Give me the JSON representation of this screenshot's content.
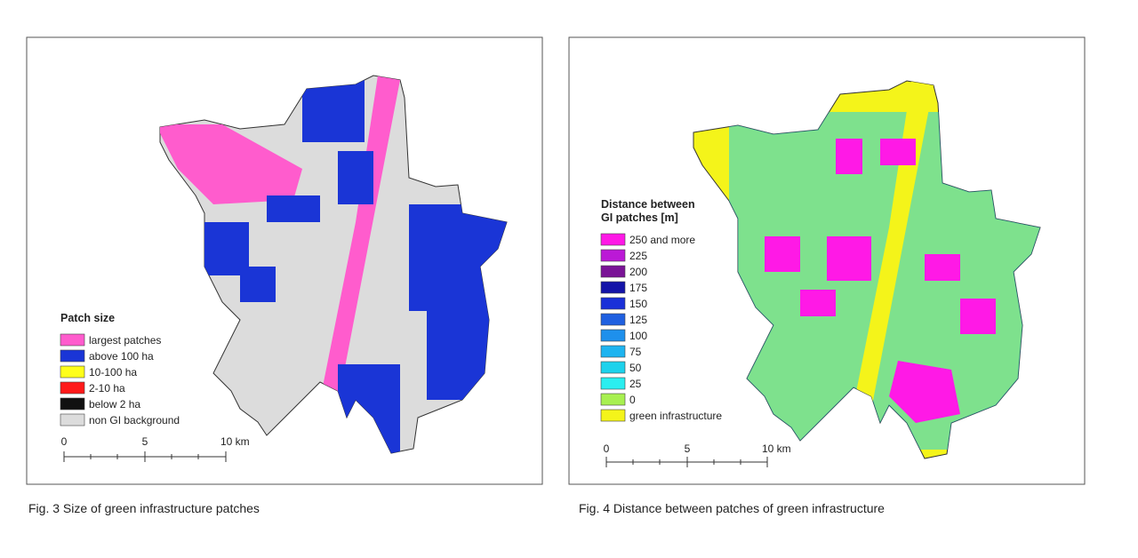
{
  "figures": [
    {
      "legend": {
        "title": [
          "Patch size"
        ],
        "items": [
          {
            "label": "largest patches",
            "color": "#ff5ccd"
          },
          {
            "label": "above 100 ha",
            "color": "#1a35d6"
          },
          {
            "label": "10-100 ha",
            "color": "#ffff1a"
          },
          {
            "label": "2-10 ha",
            "color": "#ff1a1a"
          },
          {
            "label": "below 2 ha",
            "color": "#111111"
          },
          {
            "label": "non GI background",
            "color": "#dcdcdc"
          }
        ]
      },
      "scale": [
        "0",
        "5",
        "10 km"
      ],
      "caption": "Fig. 3 Size of green infrastructure patches"
    },
    {
      "legend": {
        "title": [
          "Distance between",
          "GI patches [m]"
        ],
        "items": [
          {
            "label": "250 and more",
            "color": "#ff19e6"
          },
          {
            "label": "225",
            "color": "#bb19d6"
          },
          {
            "label": "200",
            "color": "#7a1496"
          },
          {
            "label": "175",
            "color": "#1414a8"
          },
          {
            "label": "150",
            "color": "#1a30d8"
          },
          {
            "label": "125",
            "color": "#2060e0"
          },
          {
            "label": "100",
            "color": "#1e90ec"
          },
          {
            "label": "75",
            "color": "#1eb4f0"
          },
          {
            "label": "50",
            "color": "#1ed2ec"
          },
          {
            "label": "25",
            "color": "#2aeef0"
          },
          {
            "label": "0",
            "color": "#a8f050"
          },
          {
            "label": "green infrastructure",
            "color": "#f4f41a"
          }
        ]
      },
      "scale": [
        "0",
        "5",
        "10 km"
      ],
      "caption": "Fig. 4 Distance between patches of green infrastructure"
    }
  ]
}
